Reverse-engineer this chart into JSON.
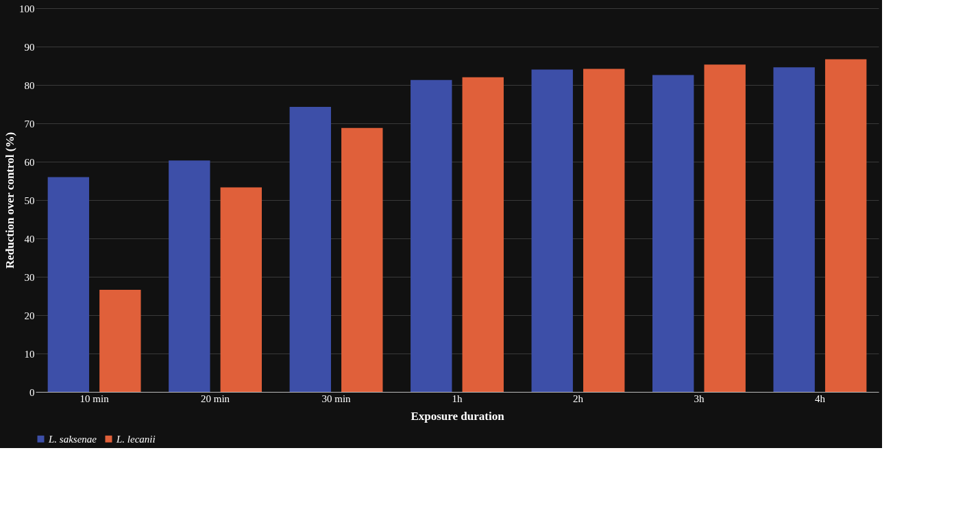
{
  "chart_data": {
    "type": "bar",
    "xlabel": "Exposure duration",
    "ylabel": "Reduction over control (%)",
    "categories": [
      "10 min",
      "20 min",
      "30 min",
      "1h",
      "2h",
      "3h",
      "4h"
    ],
    "series": [
      {
        "name": "L. saksenae",
        "color": "#3d4fa8",
        "values": [
          56,
          60.3,
          74.3,
          81.3,
          84,
          82.6,
          84.6
        ]
      },
      {
        "name": "L. lecanii",
        "color": "#e0603a",
        "values": [
          26.6,
          53.3,
          68.8,
          82,
          84.2,
          85.3,
          86.7
        ]
      }
    ],
    "ylim": [
      0,
      100
    ],
    "yticks": [
      0,
      10,
      20,
      30,
      40,
      50,
      60,
      70,
      80,
      90,
      100
    ],
    "grid": "y",
    "legend": "bottom"
  }
}
